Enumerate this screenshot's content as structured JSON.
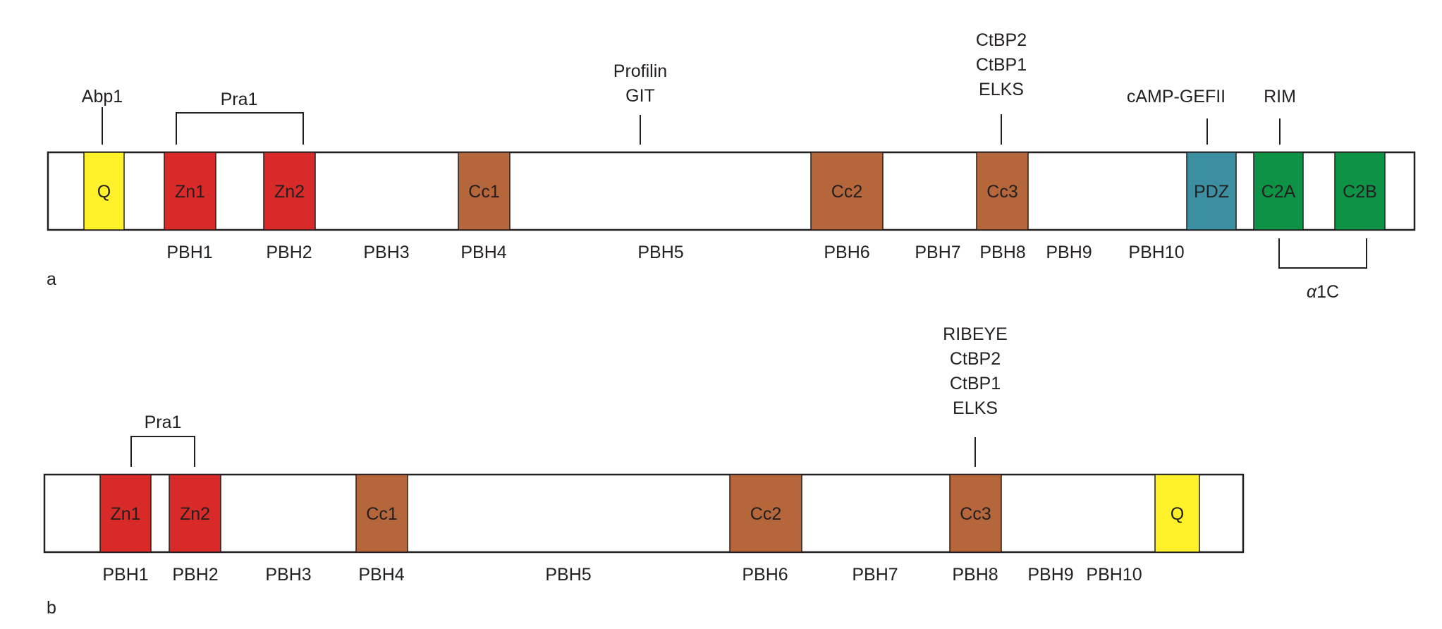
{
  "colors": {
    "yellow": "#fff22a",
    "red": "#d92a2a",
    "brown": "#b5663b",
    "teal": "#3c8fa0",
    "green": "#0d9246",
    "stroke": "#231f20"
  },
  "panel_a": {
    "panel_label": "a",
    "domains": [
      {
        "label": "Q",
        "color": "yellow"
      },
      {
        "label": "Zn1",
        "color": "red"
      },
      {
        "label": "Zn2",
        "color": "red"
      },
      {
        "label": "Cc1",
        "color": "brown"
      },
      {
        "label": "Cc2",
        "color": "brown"
      },
      {
        "label": "Cc3",
        "color": "brown"
      },
      {
        "label": "PDZ",
        "color": "teal"
      },
      {
        "label": "C2A",
        "color": "green"
      },
      {
        "label": "C2B",
        "color": "green"
      }
    ],
    "regions": [
      "PBH1",
      "PBH2",
      "PBH3",
      "PBH4",
      "PBH5",
      "PBH6",
      "PBH7",
      "PBH8",
      "PBH9",
      "PBH10"
    ],
    "binders": {
      "abp1": "Abp1",
      "pra1": "Pra1",
      "profilin": [
        "Profilin",
        "GIT"
      ],
      "cc3": [
        "CtBP2",
        "CtBP1",
        "ELKS"
      ],
      "camp": "cAMP-GEFII",
      "rim": "RIM",
      "alpha1c": {
        "prefix": "α",
        "suffix": "1C"
      }
    }
  },
  "panel_b": {
    "panel_label": "b",
    "domains": [
      {
        "label": "Zn1",
        "color": "red"
      },
      {
        "label": "Zn2",
        "color": "red"
      },
      {
        "label": "Cc1",
        "color": "brown"
      },
      {
        "label": "Cc2",
        "color": "brown"
      },
      {
        "label": "Cc3",
        "color": "brown"
      },
      {
        "label": "Q",
        "color": "yellow"
      }
    ],
    "regions": [
      "PBH1",
      "PBH2",
      "PBH3",
      "PBH4",
      "PBH5",
      "PBH6",
      "PBH7",
      "PBH8",
      "PBH9",
      "PBH10"
    ],
    "binders": {
      "pra1": "Pra1",
      "cc3": [
        "RIBEYE",
        "CtBP2",
        "CtBP1",
        "ELKS"
      ]
    }
  }
}
